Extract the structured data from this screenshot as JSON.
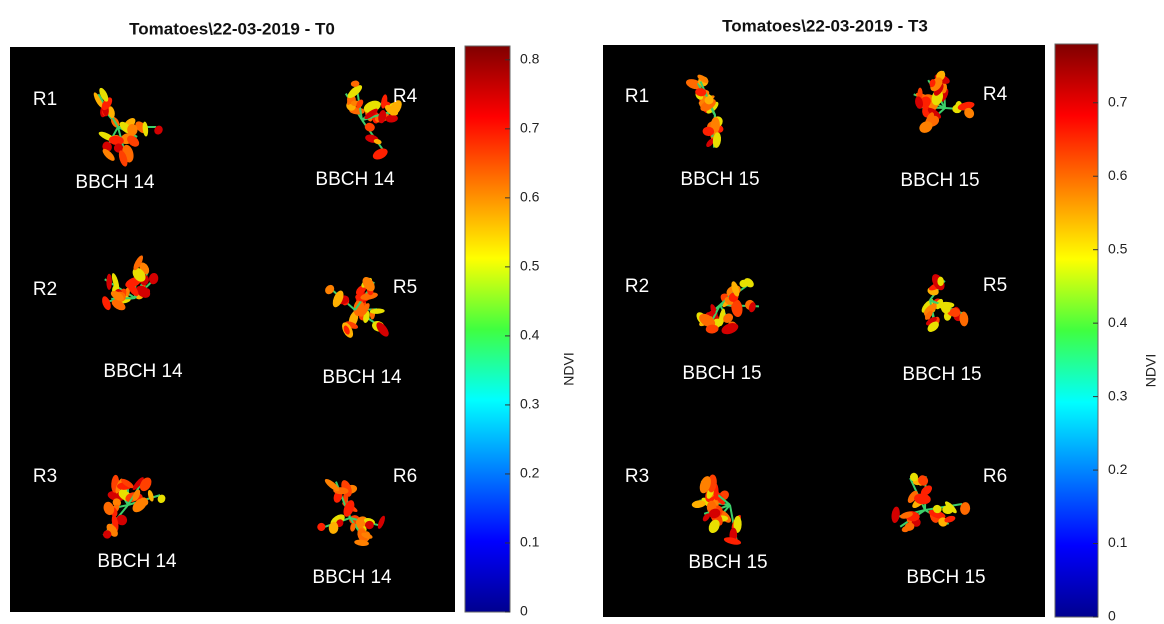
{
  "chart_data": [
    {
      "type": "image",
      "title": "Tomatoes\\22-03-2019 - T0",
      "colorbar_label": "NDVI",
      "clim": [
        0,
        0.82
      ],
      "cticks": [
        0,
        0.1,
        0.2,
        0.3,
        0.4,
        0.5,
        0.6,
        0.7,
        0.8
      ],
      "annotations": [
        {
          "label": "R1",
          "stage": "BBCH 14"
        },
        {
          "label": "R4",
          "stage": "BBCH 14"
        },
        {
          "label": "R2",
          "stage": "BBCH 14"
        },
        {
          "label": "R5",
          "stage": "BBCH 14"
        },
        {
          "label": "R3",
          "stage": "BBCH 14"
        },
        {
          "label": "R6",
          "stage": "BBCH 14"
        }
      ]
    },
    {
      "type": "image",
      "title": "Tomatoes\\22-03-2019 - T3",
      "colorbar_label": "NDVI",
      "clim": [
        0,
        0.78
      ],
      "cticks": [
        0,
        0.1,
        0.2,
        0.3,
        0.4,
        0.5,
        0.6,
        0.7
      ],
      "annotations": [
        {
          "label": "R1",
          "stage": "BBCH 15"
        },
        {
          "label": "R4",
          "stage": "BBCH 15"
        },
        {
          "label": "R2",
          "stage": "BBCH 15"
        },
        {
          "label": "R5",
          "stage": "BBCH 15"
        },
        {
          "label": "R3",
          "stage": "BBCH 15"
        },
        {
          "label": "R6",
          "stage": "BBCH 15"
        }
      ]
    }
  ]
}
